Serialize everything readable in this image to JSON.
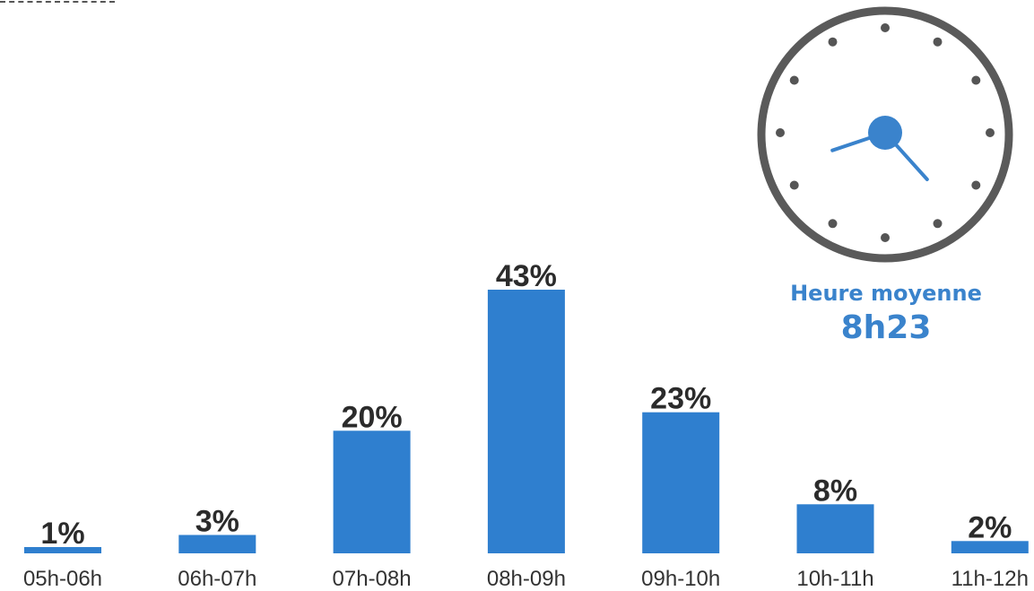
{
  "chart_data": {
    "type": "bar",
    "categories": [
      "05h-06h",
      "06h-07h",
      "07h-08h",
      "08h-09h",
      "09h-10h",
      "10h-11h",
      "11h-12h"
    ],
    "values": [
      1,
      3,
      20,
      43,
      23,
      8,
      2
    ],
    "value_labels": [
      "1%",
      "3%",
      "20%",
      "43%",
      "23%",
      "8%",
      "2%"
    ],
    "unit": "%",
    "title": "",
    "xlabel": "",
    "ylabel": "",
    "ylim": [
      0,
      43
    ],
    "grid": false,
    "legend": "none"
  },
  "average": {
    "label": "Heure moyenne",
    "value": "8h23"
  },
  "clock": {
    "hour": 8,
    "minute": 23
  },
  "colors": {
    "bar": "#2f7fcf",
    "accent": "#3a83cc",
    "clock_ring": "#5a5a5a",
    "clock_dots": "#555555",
    "text": "#2b2b2b"
  },
  "icons": {
    "clock": "clock-icon"
  }
}
